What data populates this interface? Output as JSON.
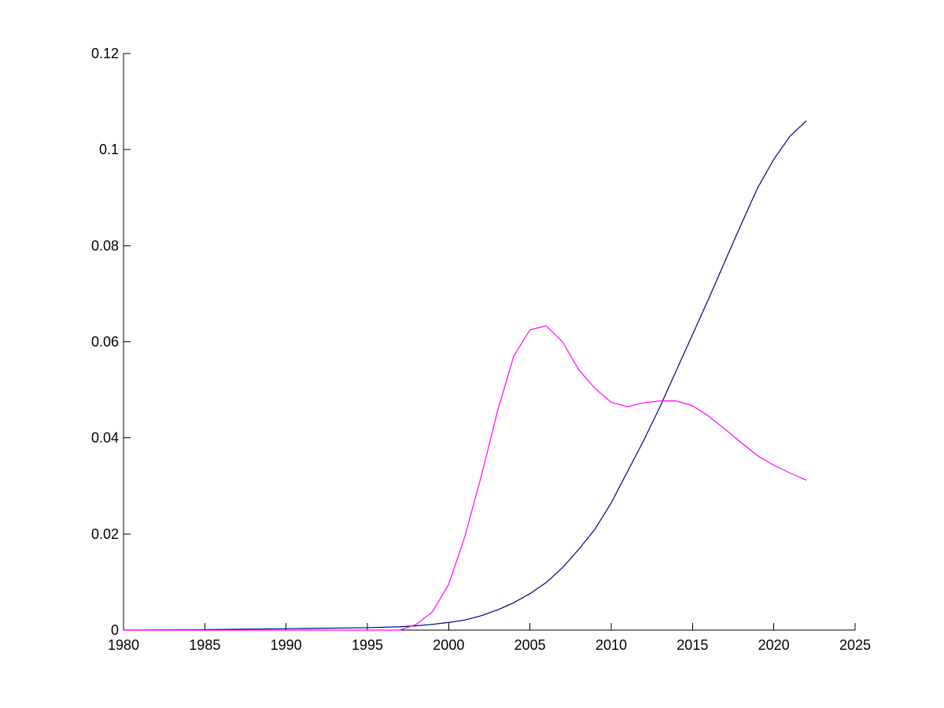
{
  "chart_data": {
    "type": "line",
    "title": "",
    "xlabel": "",
    "ylabel": "",
    "xlim": [
      1980,
      2025
    ],
    "ylim": [
      0,
      0.12
    ],
    "x_ticks": [
      1980,
      1985,
      1990,
      1995,
      2000,
      2005,
      2010,
      2015,
      2020,
      2025
    ],
    "x_tick_labels": [
      "1980",
      "1985",
      "1990",
      "1995",
      "2000",
      "2005",
      "2010",
      "2015",
      "2020",
      "2025"
    ],
    "y_ticks": [
      0,
      0.02,
      0.04,
      0.06,
      0.08,
      0.1,
      0.12
    ],
    "y_tick_labels": [
      "0",
      "0.02",
      "0.04",
      "0.06",
      "0.08",
      "0.1",
      "0.12"
    ],
    "grid": false,
    "legend": "none",
    "series": [
      {
        "color": "#000080",
        "x": [
          1980,
          1985,
          1990,
          1995,
          1997,
          1998,
          1999,
          2000,
          2001,
          2002,
          2003,
          2004,
          2005,
          2006,
          2007,
          2008,
          2009,
          2010,
          2011,
          2012,
          2013,
          2014,
          2015,
          2016,
          2017,
          2018,
          2019,
          2020,
          2021,
          2022
        ],
        "y": [
          0,
          0.0001,
          0.0003,
          0.0005,
          0.0007,
          0.0009,
          0.0012,
          0.0016,
          0.0021,
          0.003,
          0.0042,
          0.0057,
          0.0076,
          0.0099,
          0.013,
          0.0168,
          0.021,
          0.0265,
          0.033,
          0.0395,
          0.0465,
          0.054,
          0.0615,
          0.069,
          0.0768,
          0.0845,
          0.092,
          0.098,
          0.1028,
          0.106
        ]
      },
      {
        "color": "#ff00ff",
        "x": [
          1980,
          1985,
          1990,
          1995,
          1997,
          1998,
          1999,
          2000,
          2001,
          2002,
          2003,
          2004,
          2005,
          2006,
          2007,
          2008,
          2009,
          2010,
          2011,
          2012,
          2013,
          2014,
          2015,
          2016,
          2017,
          2018,
          2019,
          2020,
          2021,
          2022
        ],
        "y": [
          0,
          0,
          0,
          0,
          0,
          0.0012,
          0.0038,
          0.0095,
          0.0195,
          0.032,
          0.0455,
          0.057,
          0.0625,
          0.0633,
          0.06,
          0.0542,
          0.0503,
          0.0474,
          0.0465,
          0.0473,
          0.0477,
          0.0477,
          0.0467,
          0.0445,
          0.0418,
          0.039,
          0.0363,
          0.0343,
          0.0327,
          0.0312
        ]
      }
    ]
  }
}
